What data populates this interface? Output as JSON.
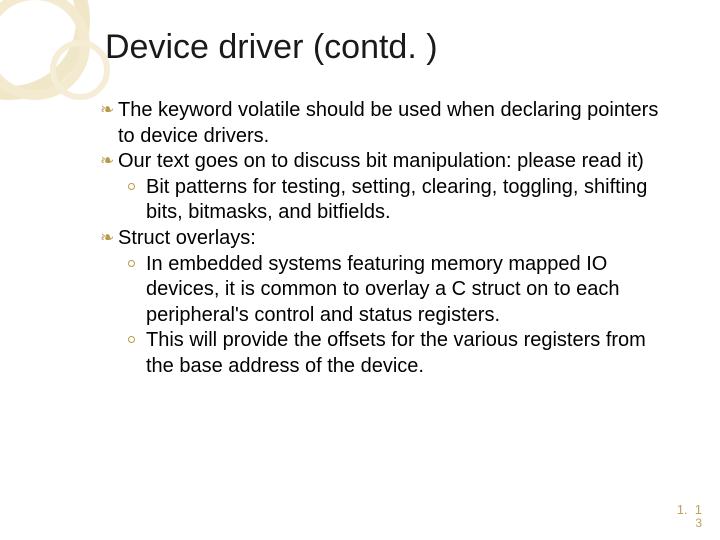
{
  "colors": {
    "background": "#ffffff",
    "title_color": "#1a1a1a",
    "body_color": "#000000",
    "accent": "#b89a4a",
    "ring_colors": [
      "#f0e6c8",
      "#f3ead0",
      "#f5edd6"
    ]
  },
  "typography": {
    "title_fontsize": 34,
    "body_fontsize": 20,
    "footer_fontsize": 13,
    "font_family": "Arial"
  },
  "title": "Device driver (contd. )",
  "bullets": [
    {
      "lead": "The",
      "rest": " keyword volatile should be used when declaring pointers to device drivers."
    },
    {
      "lead": "Our",
      "rest": " text goes on to discuss bit manipulation: please read it)",
      "subs": [
        "Bit patterns for testing, setting, clearing, toggling, shifting bits, bitmasks,  and bitfields."
      ]
    },
    {
      "lead": "Struct",
      "rest": " overlays:",
      "subs": [
        "In embedded systems featuring memory mapped IO devices, it is common to overlay a C struct on to each peripheral's control and status registers.",
        "This will provide the offsets for the various registers from the base address of the device."
      ]
    }
  ],
  "footer": {
    "left": "1.",
    "right_top": "1",
    "right_bottom": "3"
  }
}
